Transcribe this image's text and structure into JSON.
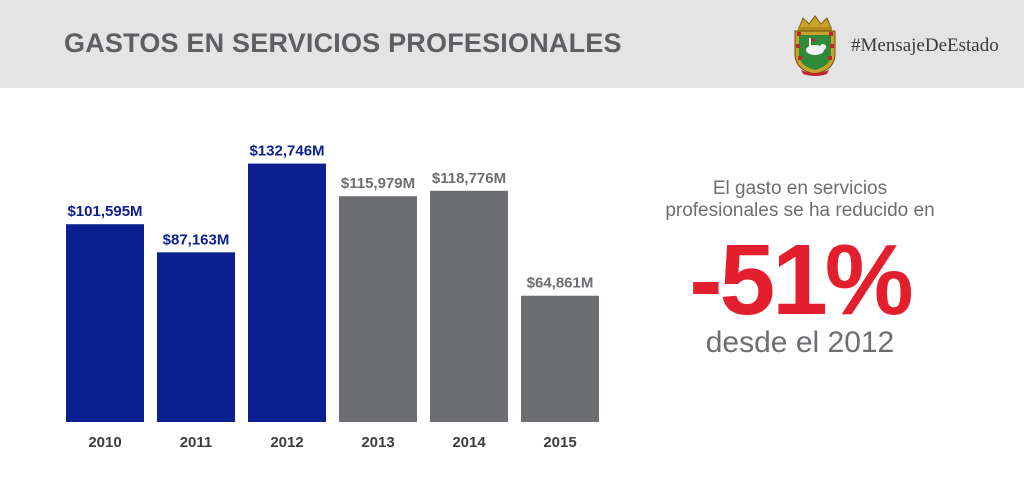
{
  "header": {
    "title": "GASTOS EN SERVICIOS PROFESIONALES",
    "hashtag": "#MensajeDeEstado",
    "seal_icon": "puerto-rico-coat-of-arms-icon"
  },
  "chart_data": {
    "type": "bar",
    "categories": [
      "2010",
      "2011",
      "2012",
      "2013",
      "2014",
      "2015"
    ],
    "values": [
      101595,
      87163,
      132746,
      115979,
      118776,
      64861
    ],
    "value_labels": [
      "$101,595M",
      "$87,163M",
      "$132,746M",
      "$115,979M",
      "$118,776M",
      "$64,861M"
    ],
    "colors": [
      "#0b1f91",
      "#0b1f91",
      "#0b1f91",
      "#6d6e71",
      "#6d6e71",
      "#6d6e71"
    ],
    "label_colors": [
      "#0b1f91",
      "#0b1f91",
      "#0b1f91",
      "#6d6e71",
      "#6d6e71",
      "#6d6e71"
    ],
    "title": "",
    "xlabel": "",
    "ylabel": "",
    "ylim": [
      0,
      150000
    ],
    "grid": false,
    "legend": "none"
  },
  "annotation": {
    "line1": "El gasto en servicios",
    "line2": "profesionales se ha reducido en",
    "big": "-51%",
    "line3": "desde el 2012",
    "big_color": "#e31e2d"
  }
}
